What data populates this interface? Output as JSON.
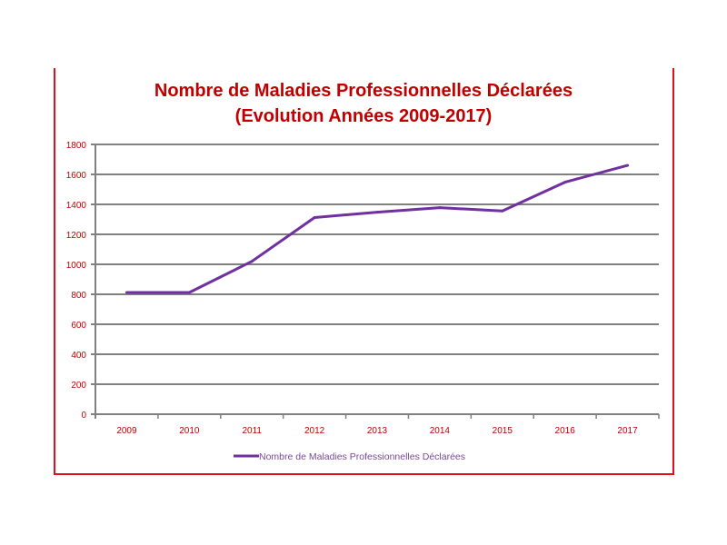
{
  "chart_data": {
    "type": "line",
    "title": "Nombre de Maladies Professionnelles Déclarées",
    "subtitle": "(Evolution Années 2009-2017)",
    "xlabel": "",
    "ylabel": "",
    "categories": [
      "2009",
      "2010",
      "2011",
      "2012",
      "2013",
      "2014",
      "2015",
      "2016",
      "2017"
    ],
    "series": [
      {
        "name": "Nombre de Maladies Professionnelles Déclarées",
        "values": [
          812,
          812,
          1020,
          1312,
          1348,
          1378,
          1356,
          1548,
          1660
        ],
        "color": "#7030a0"
      }
    ],
    "ylim": [
      0,
      1800
    ],
    "yticks": [
      0,
      200,
      400,
      600,
      800,
      1000,
      1200,
      1400,
      1600,
      1800
    ],
    "grid": true,
    "legend": "bottom",
    "colors": {
      "title": "#c00000",
      "ticks": "#c00000",
      "grid": "#808080",
      "frame": "#e0101a"
    }
  }
}
